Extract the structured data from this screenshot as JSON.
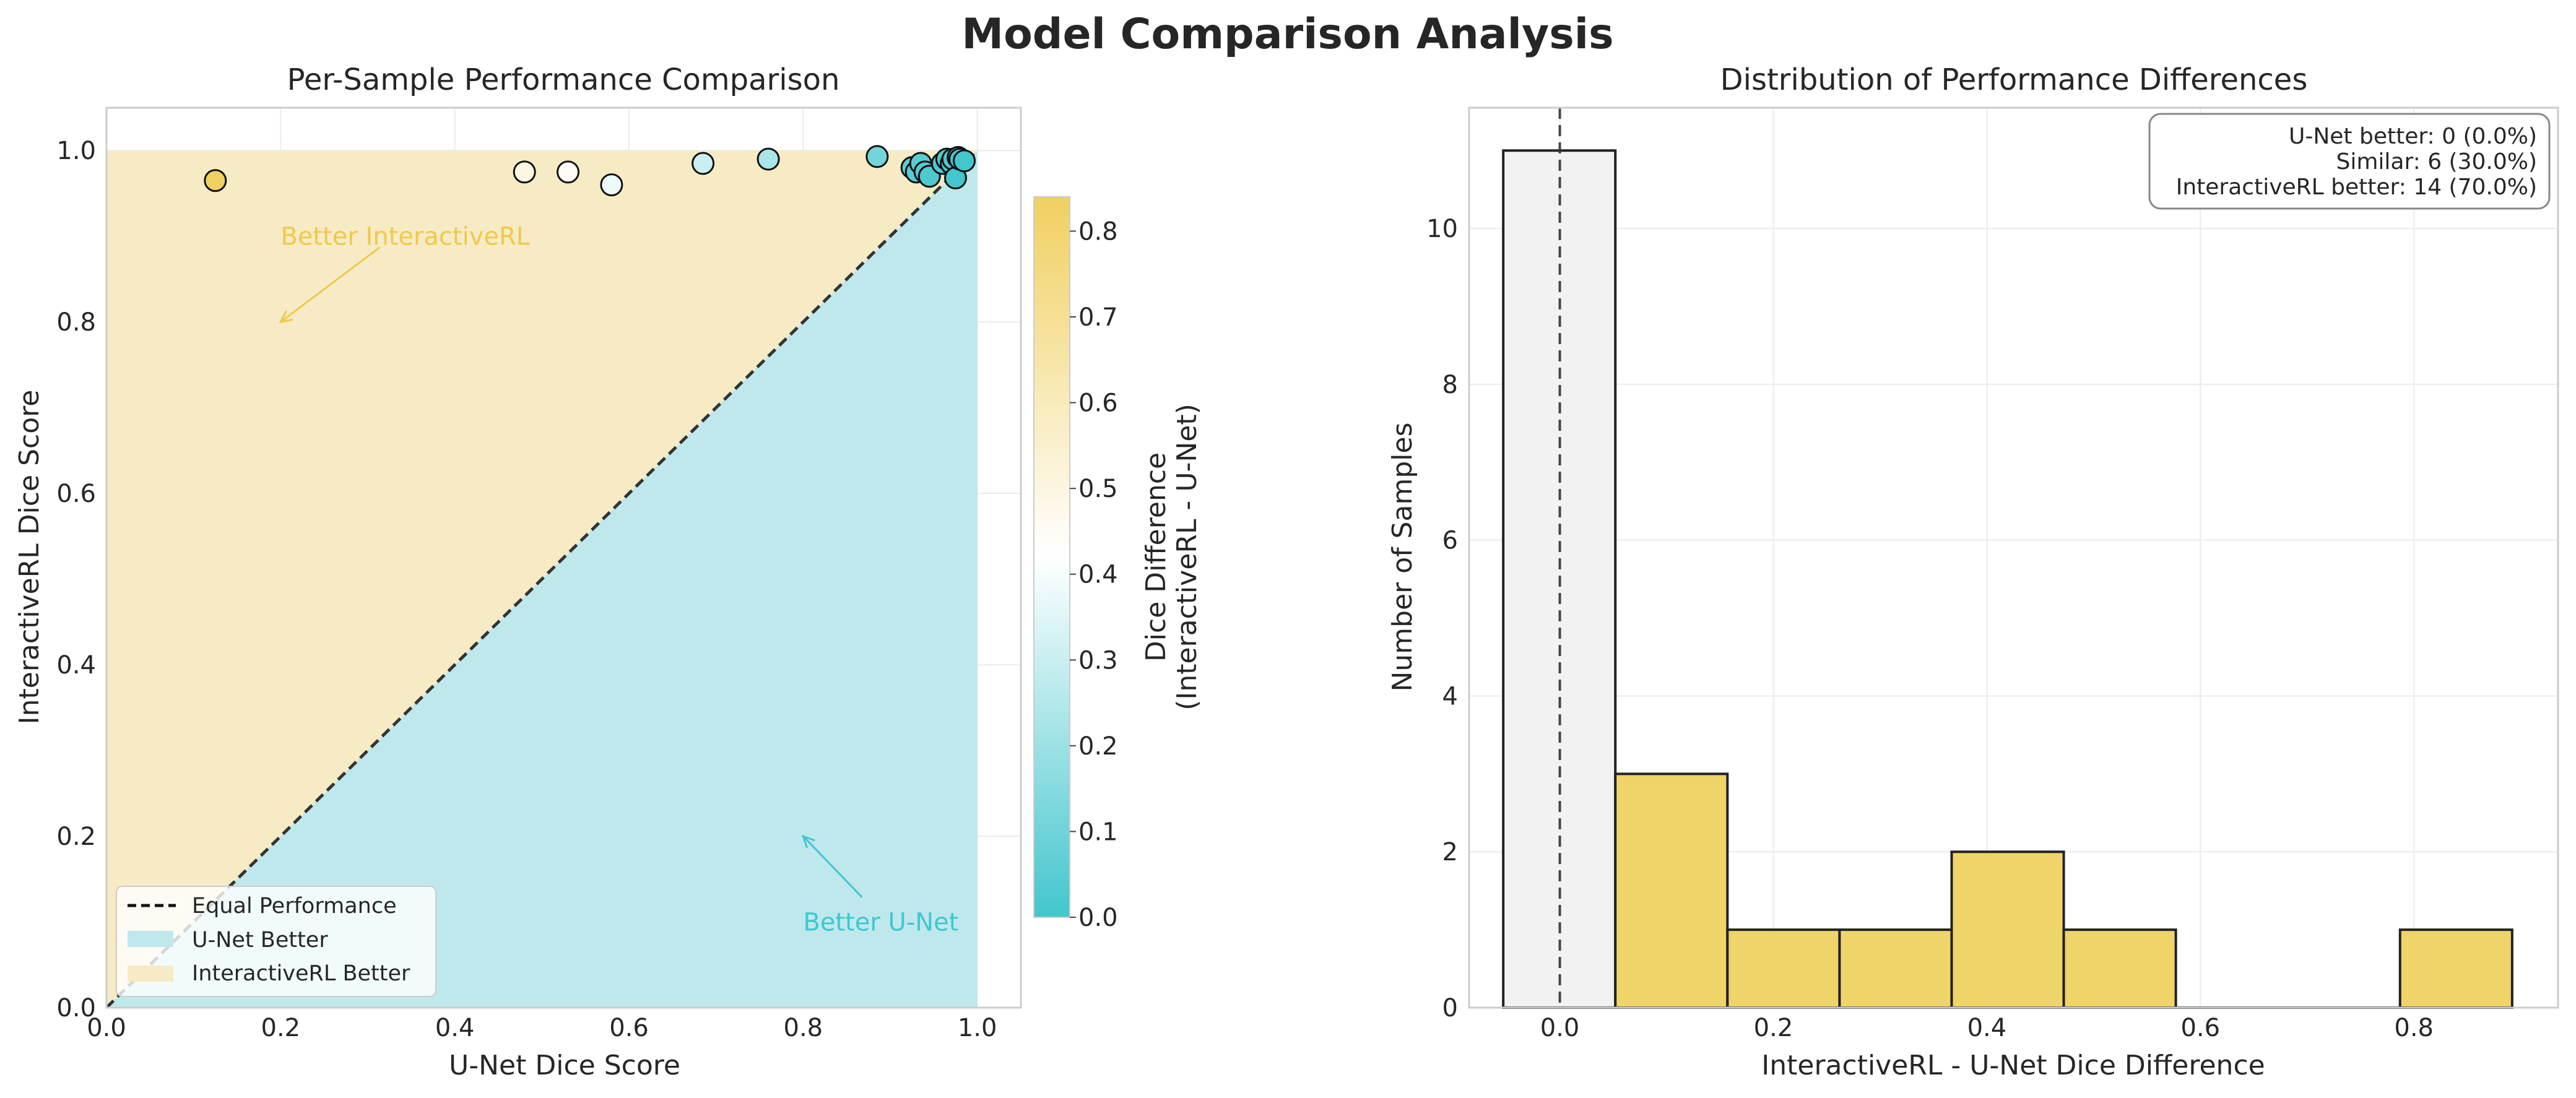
{
  "figure_title": "Model Comparison Analysis",
  "chart_data": [
    {
      "type": "scatter",
      "title": "Per-Sample Performance Comparison",
      "xlabel": "U-Net Dice Score",
      "ylabel": "InteractiveRL Dice Score",
      "xlim": [
        0.0,
        1.05
      ],
      "ylim": [
        0.0,
        1.05
      ],
      "xticks": [
        "0.0",
        "0.2",
        "0.4",
        "0.6",
        "0.8",
        "1.0"
      ],
      "yticks": [
        "0.0",
        "0.2",
        "0.4",
        "0.6",
        "0.8",
        "1.0"
      ],
      "grid": true,
      "legend_position": "lower-left",
      "legend": [
        "Equal Performance",
        "U-Net Better",
        "InteractiveRL Better"
      ],
      "annotations": [
        {
          "text": "Better InteractiveRL",
          "xy": [
            0.2,
            0.8
          ],
          "text_xy": [
            0.2,
            0.9
          ],
          "color": "#f0c94a"
        },
        {
          "text": "Better U-Net",
          "xy": [
            0.8,
            0.2
          ],
          "text_xy": [
            0.8,
            0.1
          ],
          "color": "#3fc7cf"
        }
      ],
      "colors": {
        "interactive_better": "#f6ebc4",
        "unet_better": "#bfe8ec",
        "diagonal": "#333333"
      },
      "colorbar": {
        "label_line1": "Dice Difference",
        "label_line2": "(InteractiveRL - U-Net)",
        "range": [
          0.0,
          0.84
        ],
        "ticks": [
          "0.0",
          "0.1",
          "0.2",
          "0.3",
          "0.4",
          "0.5",
          "0.6",
          "0.7",
          "0.8"
        ],
        "colors": [
          "#43c6cd",
          "#ffffff",
          "#f0d060"
        ]
      },
      "points": [
        {
          "x": 0.125,
          "y": 0.965
        },
        {
          "x": 0.48,
          "y": 0.975
        },
        {
          "x": 0.53,
          "y": 0.975
        },
        {
          "x": 0.58,
          "y": 0.96
        },
        {
          "x": 0.685,
          "y": 0.985
        },
        {
          "x": 0.76,
          "y": 0.99
        },
        {
          "x": 0.885,
          "y": 0.993
        },
        {
          "x": 0.925,
          "y": 0.98
        },
        {
          "x": 0.93,
          "y": 0.975
        },
        {
          "x": 0.935,
          "y": 0.985
        },
        {
          "x": 0.94,
          "y": 0.975
        },
        {
          "x": 0.945,
          "y": 0.97
        },
        {
          "x": 0.96,
          "y": 0.985
        },
        {
          "x": 0.965,
          "y": 0.99
        },
        {
          "x": 0.97,
          "y": 0.985
        },
        {
          "x": 0.972,
          "y": 0.99
        },
        {
          "x": 0.975,
          "y": 0.968
        },
        {
          "x": 0.978,
          "y": 0.992
        },
        {
          "x": 0.98,
          "y": 0.99
        },
        {
          "x": 0.985,
          "y": 0.988
        }
      ]
    },
    {
      "type": "bar",
      "title": "Distribution of Performance Differences",
      "xlabel": "InteractiveRL - U-Net Dice Difference",
      "ylabel": "Number of Samples",
      "xlim": [
        -0.085,
        0.935
      ],
      "ylim": [
        0,
        11.55
      ],
      "xticks": [
        "0.0",
        "0.2",
        "0.4",
        "0.6",
        "0.8"
      ],
      "yticks": [
        "0",
        "2",
        "4",
        "6",
        "8",
        "10"
      ],
      "grid": true,
      "zero_line": 0.0,
      "bins": [
        {
          "start": -0.053,
          "end": 0.052,
          "count": 11,
          "highlight": false
        },
        {
          "start": 0.052,
          "end": 0.157,
          "count": 3,
          "highlight": true
        },
        {
          "start": 0.157,
          "end": 0.262,
          "count": 1,
          "highlight": true
        },
        {
          "start": 0.262,
          "end": 0.367,
          "count": 1,
          "highlight": true
        },
        {
          "start": 0.367,
          "end": 0.472,
          "count": 2,
          "highlight": true
        },
        {
          "start": 0.472,
          "end": 0.577,
          "count": 1,
          "highlight": true
        },
        {
          "start": 0.577,
          "end": 0.682,
          "count": 0,
          "highlight": true
        },
        {
          "start": 0.682,
          "end": 0.787,
          "count": 0,
          "highlight": true
        },
        {
          "start": 0.787,
          "end": 0.892,
          "count": 1,
          "highlight": true
        }
      ],
      "colors": {
        "neutral_bar": "#f2f2f2",
        "highlight_bar": "#efd46a",
        "edge": "#222222"
      },
      "stats_box": [
        "U-Net better: 0 (0.0%)",
        "Similar: 6 (30.0%)",
        "InteractiveRL better: 14 (70.0%)"
      ]
    }
  ]
}
